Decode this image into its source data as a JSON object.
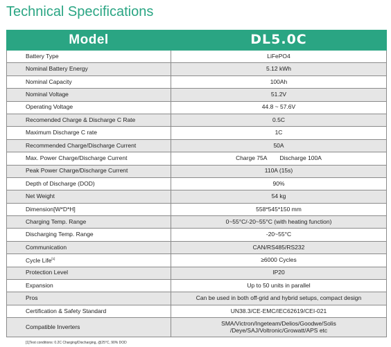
{
  "header": {
    "title": "Technical Specifications"
  },
  "table": {
    "head_left": "Model",
    "head_right": "DL5.0C",
    "rows": [
      {
        "label": "Battery Type",
        "value": "LiFePO4"
      },
      {
        "label": "Nominal Battery Energy",
        "value": "5.12 kWh"
      },
      {
        "label": "Nominal Capacity",
        "value": "100Ah"
      },
      {
        "label": "Nominal Voltage",
        "value": "51.2V"
      },
      {
        "label": "Operating Voltage",
        "value": "44.8 ~ 57.6V"
      },
      {
        "label": "Recomended Charge & Discharge C Rate",
        "value": "0.5C"
      },
      {
        "label": "Maximum Discharge C rate",
        "value": "1C"
      },
      {
        "label": "Recommended Charge/Discharge Current",
        "value": "50A"
      },
      {
        "label": "Max. Power Charge/Discharge Current",
        "value_a": "Charge 75A",
        "value_b": "Discharge 100A"
      },
      {
        "label": "Peak Power Charge/Discharge Current",
        "value": "110A (15s)"
      },
      {
        "label": "Depth of Discharge (DOD)",
        "value": "90%"
      },
      {
        "label": "Net Weight",
        "value": "54 kg"
      },
      {
        "label": "Dimension[W*D*H]",
        "value": "558*545*150 mm"
      },
      {
        "label": "Charging Temp. Range",
        "value": "0~55°C/-20~55°C (with heating function)"
      },
      {
        "label": "Discharging Temp. Range",
        "value": "-20~55°C"
      },
      {
        "label": "Communication",
        "value": "CAN/RS485/RS232"
      },
      {
        "label": "Cycle Life",
        "label_sup": "[1]",
        "value": "≥6000 Cycles"
      },
      {
        "label": "Protection Level",
        "value": "IP20"
      },
      {
        "label": "Expansion",
        "value": "Up to 50 units in parallel"
      },
      {
        "label": "Pros",
        "value": "Can be used in both off-grid and hybrid setups, compact design"
      },
      {
        "label": "Certification & Safety Standard",
        "value": "UN38.3/CE-EMC/IEC62619/CEI-021"
      },
      {
        "label": "Compatible Inverters",
        "value_line1": "SMA/Victron/Ingeteam/Delios/Goodwe/Solis",
        "value_line2": "/Deye/SAJ/Voltronic/Growatt/APS etc"
      }
    ]
  },
  "footnote": "[1]Test conditions: 0.2C Charging/Discharging, @25°C, 90% DOD",
  "colors": {
    "accent": "#2aa583",
    "row_shade": "#e6e6e6"
  }
}
